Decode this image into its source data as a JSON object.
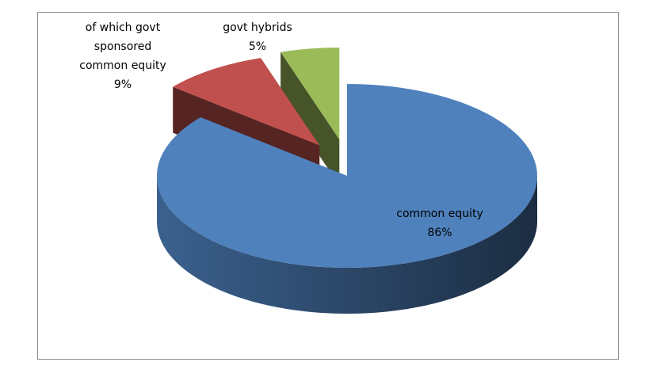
{
  "chart_data": {
    "type": "pie",
    "three_d": true,
    "categories": [
      "common equity",
      "of which govt sponsored common equity",
      "govt hybrids"
    ],
    "values": [
      86,
      9,
      5
    ],
    "value_labels": [
      "86%",
      "9%",
      "5%"
    ],
    "colors": [
      "#4f81bd",
      "#c0504d",
      "#9bbb59"
    ],
    "exploded": [
      false,
      true,
      true
    ]
  }
}
